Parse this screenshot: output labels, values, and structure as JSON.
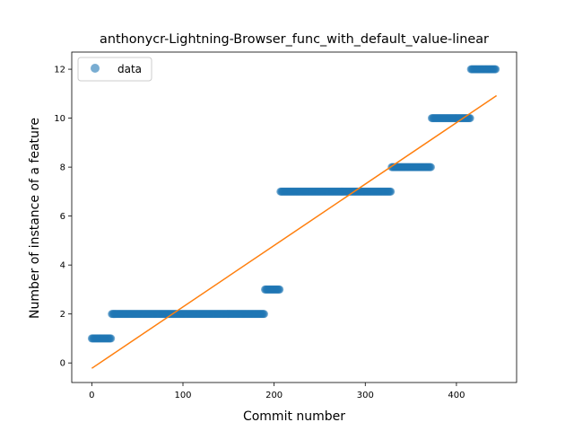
{
  "chart_data": {
    "type": "scatter",
    "title": "anthonycr-Lightning-Browser_func_with_default_value-linear",
    "xlabel": "Commit number",
    "ylabel": "Number of instance of a feature",
    "xlim": [
      -22,
      466
    ],
    "ylim": [
      -0.8,
      12.7
    ],
    "xticks": [
      0,
      100,
      200,
      300,
      400
    ],
    "yticks": [
      0,
      2,
      4,
      6,
      8,
      10,
      12
    ],
    "legend": {
      "position": "top-left",
      "entries": [
        "data"
      ]
    },
    "colors": {
      "data": "#1f77b4",
      "fit": "#ff7f0e"
    },
    "series": [
      {
        "name": "data",
        "kind": "scatter",
        "segments": [
          {
            "x_start": 0,
            "x_end": 22,
            "y": 1
          },
          {
            "x_start": 22,
            "x_end": 190,
            "y": 2
          },
          {
            "x_start": 190,
            "x_end": 207,
            "y": 3
          },
          {
            "x_start": 207,
            "x_end": 329,
            "y": 7
          },
          {
            "x_start": 329,
            "x_end": 373,
            "y": 8
          },
          {
            "x_start": 373,
            "x_end": 416,
            "y": 10
          },
          {
            "x_start": 416,
            "x_end": 444,
            "y": 12
          }
        ]
      },
      {
        "kind": "line",
        "x": [
          0,
          444
        ],
        "y": [
          -0.22,
          10.92
        ]
      }
    ]
  }
}
